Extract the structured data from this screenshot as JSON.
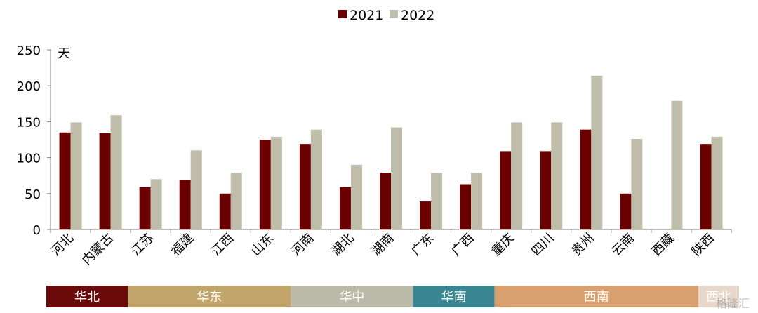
{
  "chart_data": {
    "type": "bar",
    "unit_label": "天",
    "categories": [
      "河北",
      "内蒙古",
      "江苏",
      "福建",
      "江西",
      "山东",
      "河南",
      "湖北",
      "湖南",
      "广东",
      "广西",
      "重庆",
      "四川",
      "贵州",
      "云南",
      "西藏",
      "陕西"
    ],
    "series": [
      {
        "name": "2021",
        "color": "#6b0000",
        "values": [
          135,
          134,
          59,
          69,
          50,
          125,
          119,
          59,
          79,
          39,
          63,
          109,
          109,
          139,
          50,
          null,
          119
        ]
      },
      {
        "name": "2022",
        "color": "#bfbcaa",
        "values": [
          149,
          159,
          70,
          110,
          79,
          129,
          139,
          90,
          142,
          79,
          79,
          149,
          149,
          214,
          126,
          179,
          129
        ]
      }
    ],
    "ylim": [
      0,
      250
    ],
    "yticks": [
      0,
      50,
      100,
      150,
      200,
      250
    ],
    "legend_position": "top-center",
    "grid": false
  },
  "regions": [
    {
      "label": "华北",
      "color": "#6b0a0a",
      "span": [
        0,
        1
      ]
    },
    {
      "label": "华东",
      "color": "#c0a46a",
      "span": [
        2,
        5
      ]
    },
    {
      "label": "华中",
      "color": "#bbb9a7",
      "span": [
        6,
        8
      ]
    },
    {
      "label": "华南",
      "color": "#3a8692",
      "span": [
        9,
        10
      ]
    },
    {
      "label": "西南",
      "color": "#d8a06e",
      "span": [
        11,
        15
      ]
    },
    {
      "label": "西北",
      "color": "#e8d8cc",
      "span": [
        16,
        16
      ]
    }
  ],
  "watermark": "格隆汇"
}
